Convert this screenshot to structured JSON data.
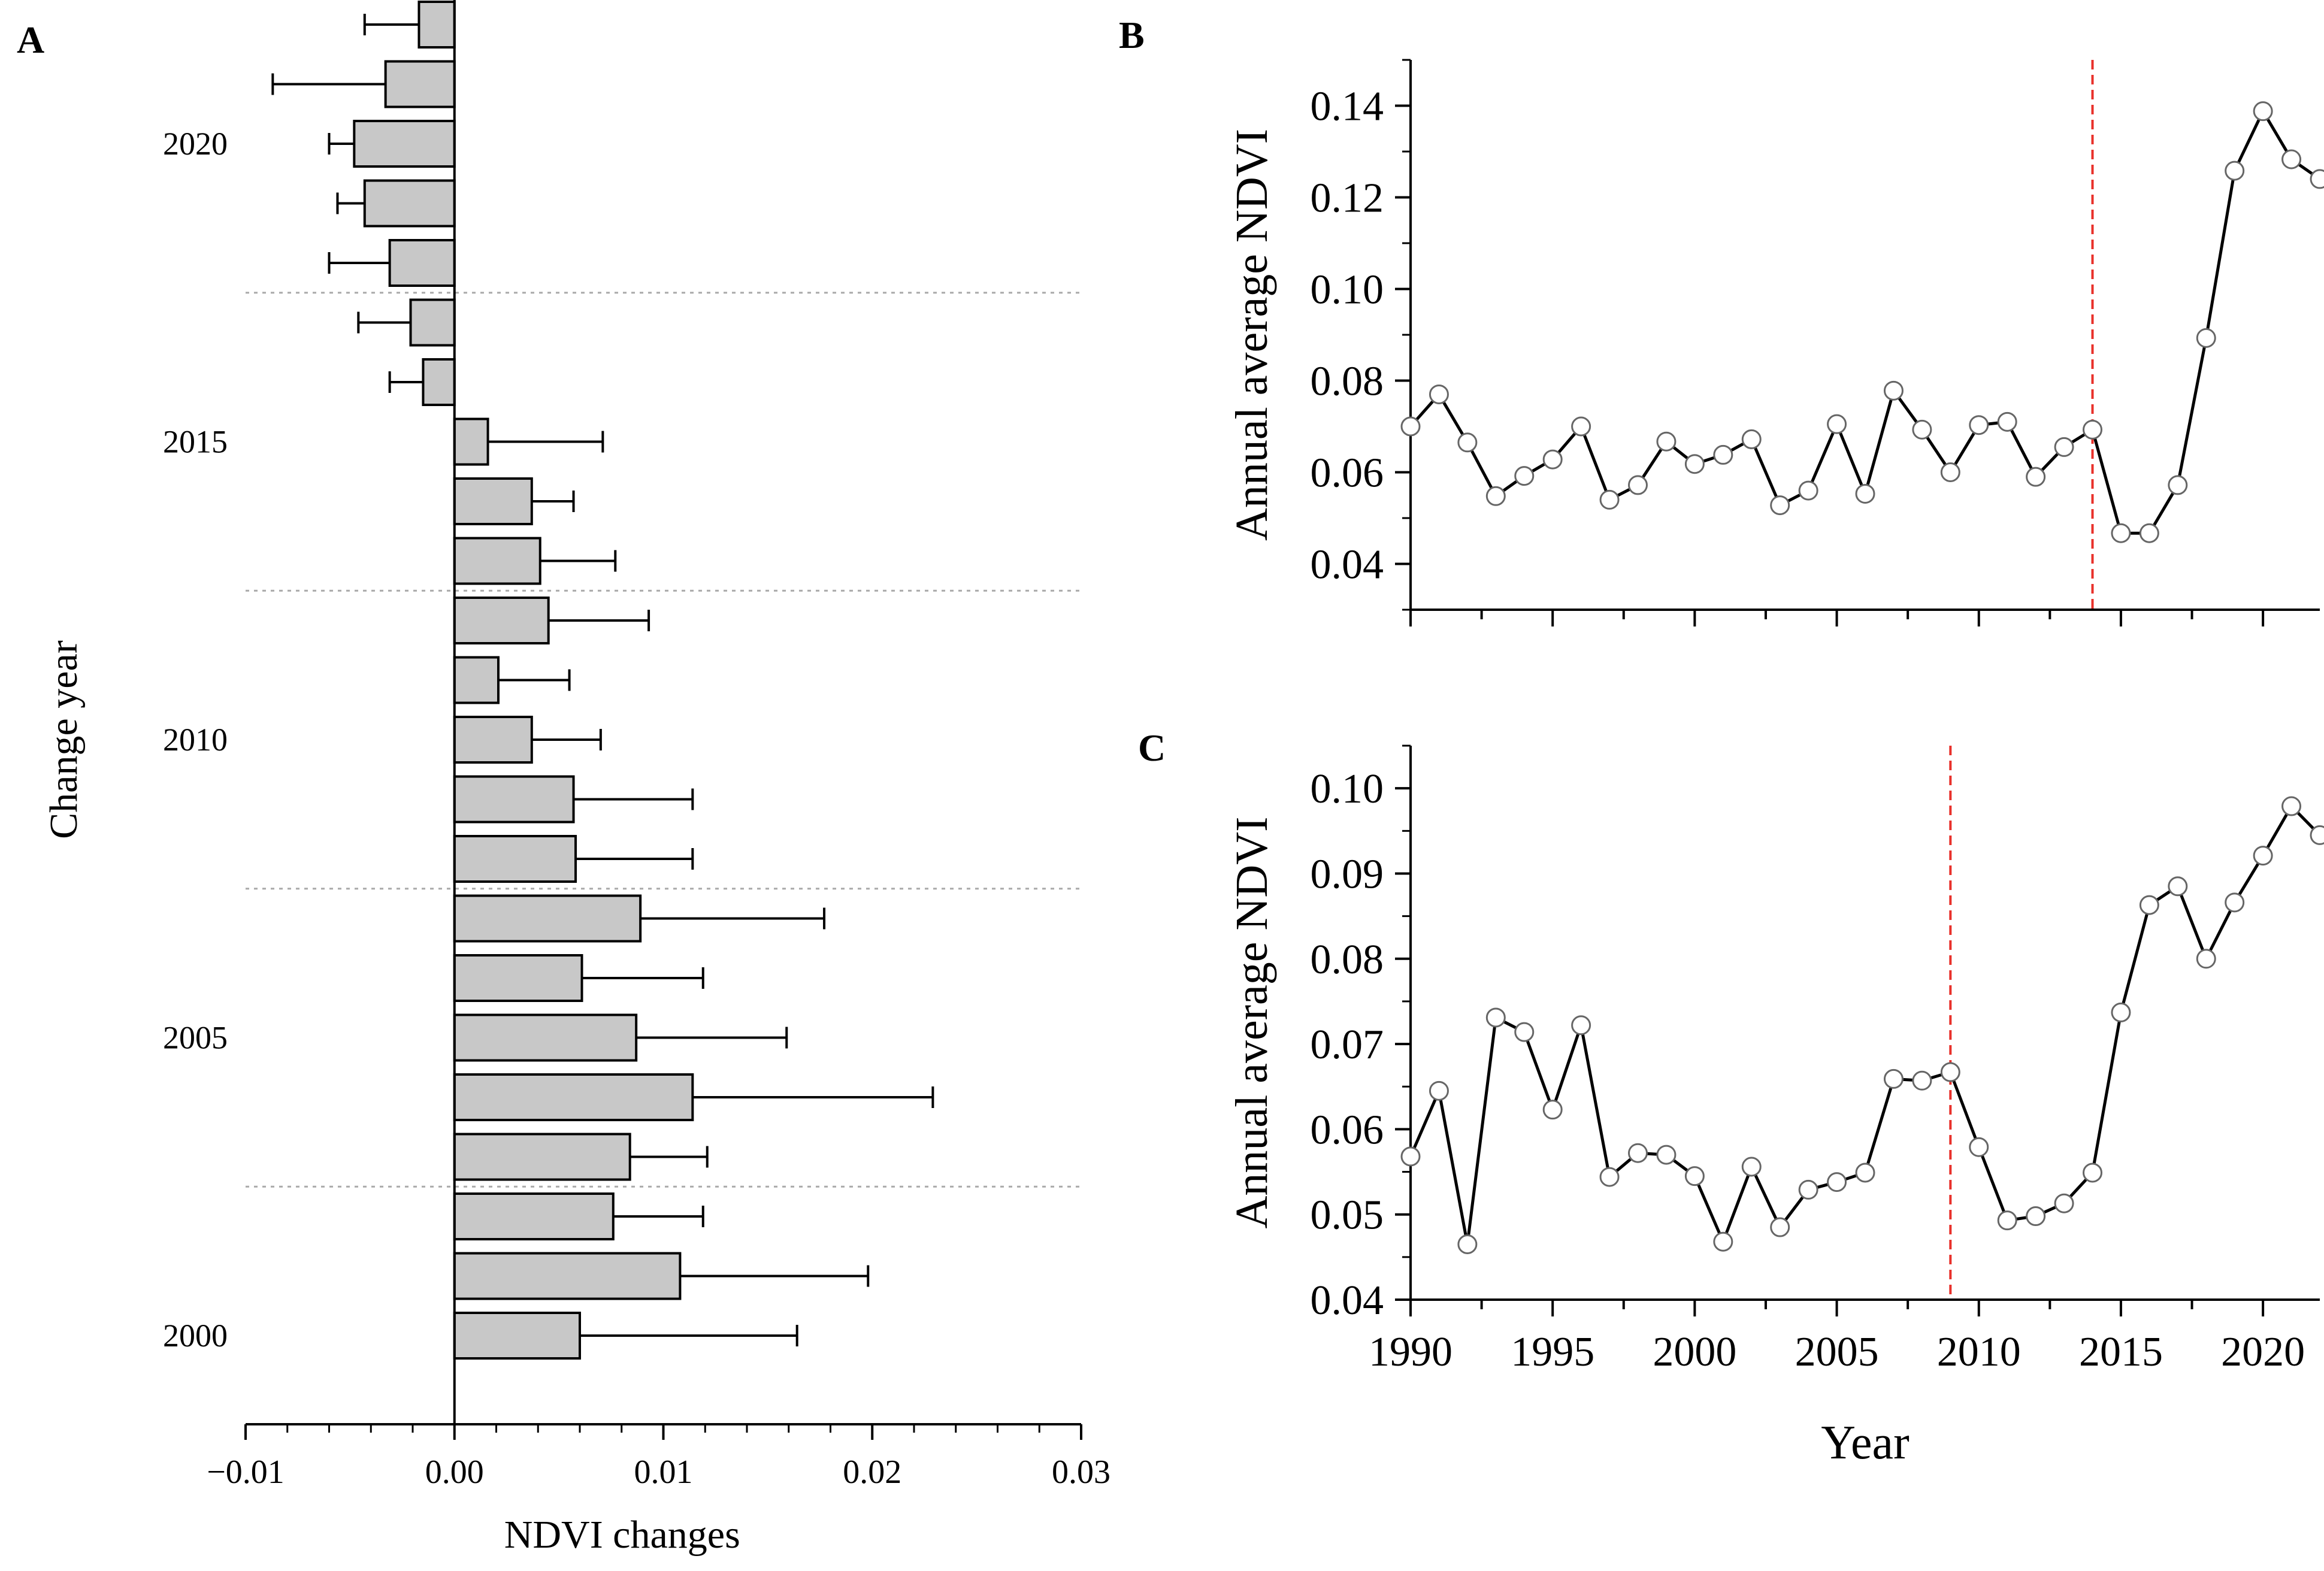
{
  "chart_data": [
    {
      "panel": "A",
      "type": "bar",
      "orientation": "horizontal",
      "xlabel": "NDVI changes",
      "ylabel": "Change year",
      "xlim": [
        -0.01,
        0.03
      ],
      "xticks": [
        -0.01,
        0.0,
        0.01,
        0.02,
        0.03
      ],
      "xtick_labels": [
        "−0.01",
        "0.00",
        "0.01",
        "0.02",
        "0.03"
      ],
      "ytick_labels": [
        {
          "label": "2020",
          "year": 2020
        },
        {
          "label": "2015",
          "year": 2015
        },
        {
          "label": "2010",
          "year": 2010
        },
        {
          "label": "2005",
          "year": 2005
        },
        {
          "label": "2000",
          "year": 2000
        }
      ],
      "separators_after_year": [
        2017.5,
        2012.5,
        2007.5,
        2002.5
      ],
      "bars": [
        {
          "year": 2000,
          "value": 0.006,
          "error": 0.0104
        },
        {
          "year": 2001,
          "value": 0.0108,
          "error": 0.009
        },
        {
          "year": 2002,
          "value": 0.0076,
          "error": 0.0043
        },
        {
          "year": 2003,
          "value": 0.0084,
          "error": 0.0037
        },
        {
          "year": 2004,
          "value": 0.0114,
          "error": 0.0115
        },
        {
          "year": 2005,
          "value": 0.0087,
          "error": 0.0072
        },
        {
          "year": 2006,
          "value": 0.0061,
          "error": 0.0058
        },
        {
          "year": 2007,
          "value": 0.0089,
          "error": 0.0088
        },
        {
          "year": 2008,
          "value": 0.0058,
          "error": 0.0056
        },
        {
          "year": 2009,
          "value": 0.0057,
          "error": 0.0057
        },
        {
          "year": 2010,
          "value": 0.0037,
          "error": 0.0033
        },
        {
          "year": 2011,
          "value": 0.0021,
          "error": 0.0034
        },
        {
          "year": 2012,
          "value": 0.0045,
          "error": 0.0048
        },
        {
          "year": 2013,
          "value": 0.0041,
          "error": 0.0036
        },
        {
          "year": 2014,
          "value": 0.0037,
          "error": 0.002
        },
        {
          "year": 2015,
          "value": 0.0016,
          "error": 0.0055
        },
        {
          "year": 2016,
          "value": -0.0015,
          "error": 0.0016
        },
        {
          "year": 2017,
          "value": -0.0021,
          "error": 0.0025
        },
        {
          "year": 2018,
          "value": -0.0031,
          "error": 0.0029
        },
        {
          "year": 2019,
          "value": -0.0043,
          "error": 0.0013
        },
        {
          "year": 2020,
          "value": -0.0048,
          "error": 0.0012
        },
        {
          "year": 2021,
          "value": -0.0033,
          "error": 0.0054
        },
        {
          "year": 2022,
          "value": -0.0017,
          "error": 0.0026
        }
      ],
      "bar_color": "#c8c8c8"
    },
    {
      "panel": "B",
      "type": "line",
      "ylabel": "Annual average NDVI",
      "xlim": [
        1990,
        2022
      ],
      "ylim": [
        0.03,
        0.15
      ],
      "yticks": [
        0.04,
        0.06,
        0.08,
        0.1,
        0.12,
        0.14
      ],
      "ytick_labels": [
        "0.04",
        "0.06",
        "0.08",
        "0.10",
        "0.12",
        "0.14"
      ],
      "change_point_year": 2014,
      "change_line_color": "#e8302a",
      "x": [
        1990,
        1991,
        1992,
        1993,
        1994,
        1995,
        1996,
        1997,
        1998,
        1999,
        2000,
        2001,
        2002,
        2003,
        2004,
        2005,
        2006,
        2007,
        2008,
        2009,
        2010,
        2011,
        2012,
        2013,
        2014,
        2015,
        2016,
        2017,
        2018,
        2019,
        2020,
        2021,
        2022
      ],
      "y": [
        0.07,
        0.077,
        0.0665,
        0.0548,
        0.0592,
        0.0628,
        0.07,
        0.054,
        0.0572,
        0.0667,
        0.0618,
        0.0638,
        0.0672,
        0.0528,
        0.056,
        0.0705,
        0.0553,
        0.0778,
        0.0693,
        0.06,
        0.0703,
        0.071,
        0.059,
        0.0655,
        0.0693,
        0.0467,
        0.0467,
        0.0572,
        0.0893,
        0.1258,
        0.1388,
        0.1283,
        0.124
      ]
    },
    {
      "panel": "C",
      "type": "line",
      "xlabel": "Year",
      "ylabel": "Annual average NDVI",
      "xlim": [
        1990,
        2022
      ],
      "ylim": [
        0.04,
        0.105
      ],
      "xticks": [
        1990,
        1995,
        2000,
        2005,
        2010,
        2015,
        2020
      ],
      "xtick_labels": [
        "1990",
        "1995",
        "2000",
        "2005",
        "2010",
        "2015",
        "2020"
      ],
      "yticks": [
        0.04,
        0.05,
        0.06,
        0.07,
        0.08,
        0.09,
        0.1
      ],
      "ytick_labels": [
        "0.04",
        "0.05",
        "0.06",
        "0.07",
        "0.08",
        "0.09",
        "0.10"
      ],
      "change_point_year": 2009,
      "change_line_color": "#e8302a",
      "x": [
        1990,
        1991,
        1992,
        1993,
        1994,
        1995,
        1996,
        1997,
        1998,
        1999,
        2000,
        2001,
        2002,
        2003,
        2004,
        2005,
        2006,
        2007,
        2008,
        2009,
        2010,
        2011,
        2012,
        2013,
        2014,
        2015,
        2016,
        2017,
        2018,
        2019,
        2020,
        2021,
        2022
      ],
      "y": [
        0.0568,
        0.0645,
        0.0465,
        0.0731,
        0.0714,
        0.0623,
        0.0722,
        0.0544,
        0.0572,
        0.057,
        0.0545,
        0.0468,
        0.0556,
        0.0485,
        0.0529,
        0.0538,
        0.0549,
        0.0659,
        0.0657,
        0.0667,
        0.0579,
        0.0493,
        0.0498,
        0.0513,
        0.0549,
        0.0737,
        0.0863,
        0.0885,
        0.08,
        0.0866,
        0.0921,
        0.0979,
        0.0945
      ]
    }
  ],
  "panel_labels": [
    "A",
    "B",
    "C"
  ]
}
